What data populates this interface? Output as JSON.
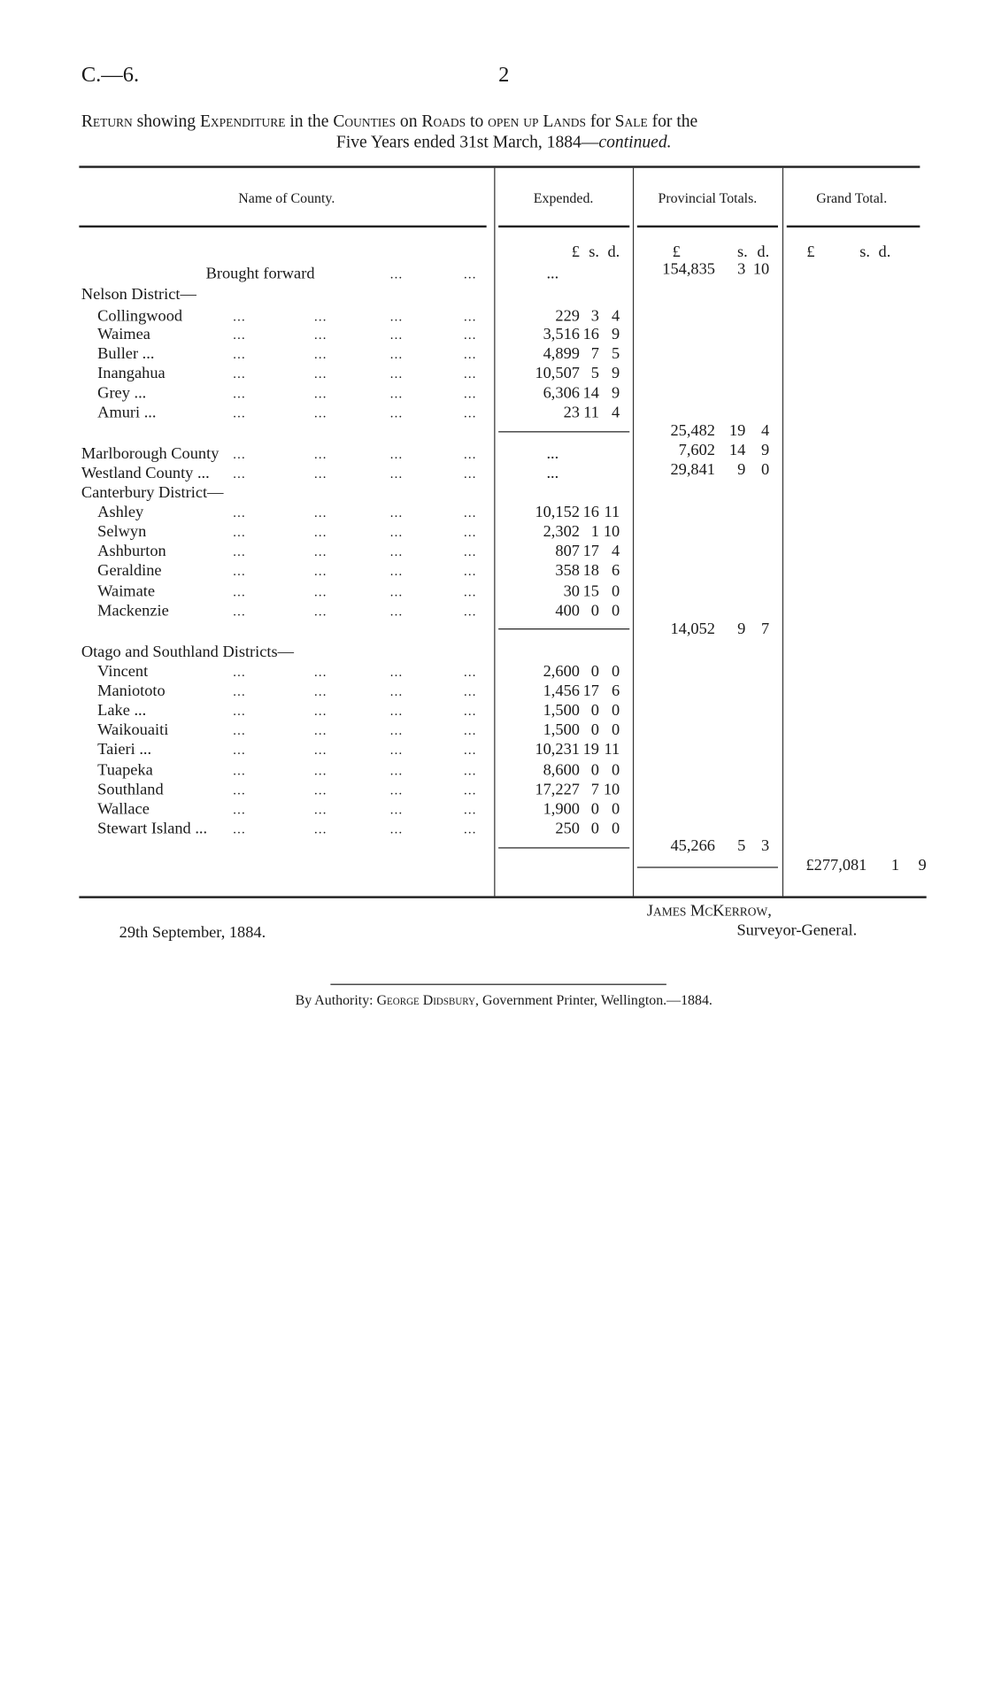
{
  "page_ref": "C.—6.",
  "page_number": "2",
  "title": {
    "line1_parts": [
      "Return",
      " showing ",
      "Expenditure",
      " in the ",
      "Counties",
      " on ",
      "Roads",
      " to ",
      "open up",
      " ",
      "Lands",
      " for ",
      "Sale",
      " for the"
    ],
    "line2": "Five Years ended 31st March, 1884—",
    "line2_italic": "continued."
  },
  "headers": {
    "name": "Name of County.",
    "expended": "Expended.",
    "provincial": "Provincial Totals.",
    "grand": "Grand Total."
  },
  "units": {
    "pound": "£",
    "s": "s.",
    "d": "d."
  },
  "dots": "...",
  "brought_forward": {
    "label": "Brought forward",
    "expended": "...",
    "provincial": [
      "154,835",
      "3",
      "10"
    ]
  },
  "rows": [
    {
      "label": "Nelson District—",
      "type": "group"
    },
    {
      "label": "Collingwood",
      "expended": [
        "229",
        "3",
        "4"
      ]
    },
    {
      "label": "Waimea",
      "expended": [
        "3,516",
        "16",
        "9"
      ]
    },
    {
      "label": "Buller ...",
      "expended": [
        "4,899",
        "7",
        "5"
      ]
    },
    {
      "label": "Inangahua",
      "expended": [
        "10,507",
        "5",
        "9"
      ]
    },
    {
      "label": "Grey ...",
      "expended": [
        "6,306",
        "14",
        "9"
      ]
    },
    {
      "label": "Amuri ...",
      "expended": [
        "23",
        "11",
        "4"
      ]
    },
    {
      "label": "Marlborough County",
      "type": "county",
      "expended_text": "...",
      "provincial": [
        "7,602",
        "14",
        "9"
      ]
    },
    {
      "label": "Westland County ...",
      "type": "county",
      "expended_text": "...",
      "provincial": [
        "29,841",
        "9",
        "0"
      ]
    },
    {
      "label": "Canterbury District—",
      "type": "group"
    },
    {
      "label": "Ashley",
      "expended": [
        "10,152",
        "16",
        "11"
      ]
    },
    {
      "label": "Selwyn",
      "expended": [
        "2,302",
        "1",
        "10"
      ]
    },
    {
      "label": "Ashburton",
      "expended": [
        "807",
        "17",
        "4"
      ]
    },
    {
      "label": "Geraldine",
      "expended": [
        "358",
        "18",
        "6"
      ]
    },
    {
      "label": "Waimate",
      "expended": [
        "30",
        "15",
        "0"
      ]
    },
    {
      "label": "Mackenzie",
      "expended": [
        "400",
        "0",
        "0"
      ]
    },
    {
      "label": "Otago and Southland Districts—",
      "type": "group"
    },
    {
      "label": "Vincent",
      "expended": [
        "2,600",
        "0",
        "0"
      ]
    },
    {
      "label": "Maniototo",
      "expended": [
        "1,456",
        "17",
        "6"
      ]
    },
    {
      "label": "Lake ...",
      "expended": [
        "1,500",
        "0",
        "0"
      ]
    },
    {
      "label": "Waikouaiti",
      "expended": [
        "1,500",
        "0",
        "0"
      ]
    },
    {
      "label": "Taieri ...",
      "expended": [
        "10,231",
        "19",
        "11"
      ]
    },
    {
      "label": "Tuapeka",
      "expended": [
        "8,600",
        "0",
        "0"
      ]
    },
    {
      "label": "Southland",
      "expended": [
        "17,227",
        "7",
        "10"
      ]
    },
    {
      "label": "Wallace",
      "expended": [
        "1,900",
        "0",
        "0"
      ]
    },
    {
      "label": "Stewart Island ...",
      "expended": [
        "250",
        "0",
        "0"
      ]
    }
  ],
  "subtotals": {
    "nelson": [
      "25,482",
      "19",
      "4"
    ],
    "canterbury": [
      "14,052",
      "9",
      "7"
    ],
    "otago_southland": [
      "45,266",
      "5",
      "3"
    ]
  },
  "grand_total": [
    "£277,081",
    "1",
    "9"
  ],
  "signature": {
    "name": "James McKerrow,",
    "title": "Surveyor-General."
  },
  "date": "29th September, 1884.",
  "imprint": {
    "prefix": "By Authority: ",
    "printer": "George Didsbury",
    "suffix": ", Government Printer, Wellington.—1884."
  }
}
